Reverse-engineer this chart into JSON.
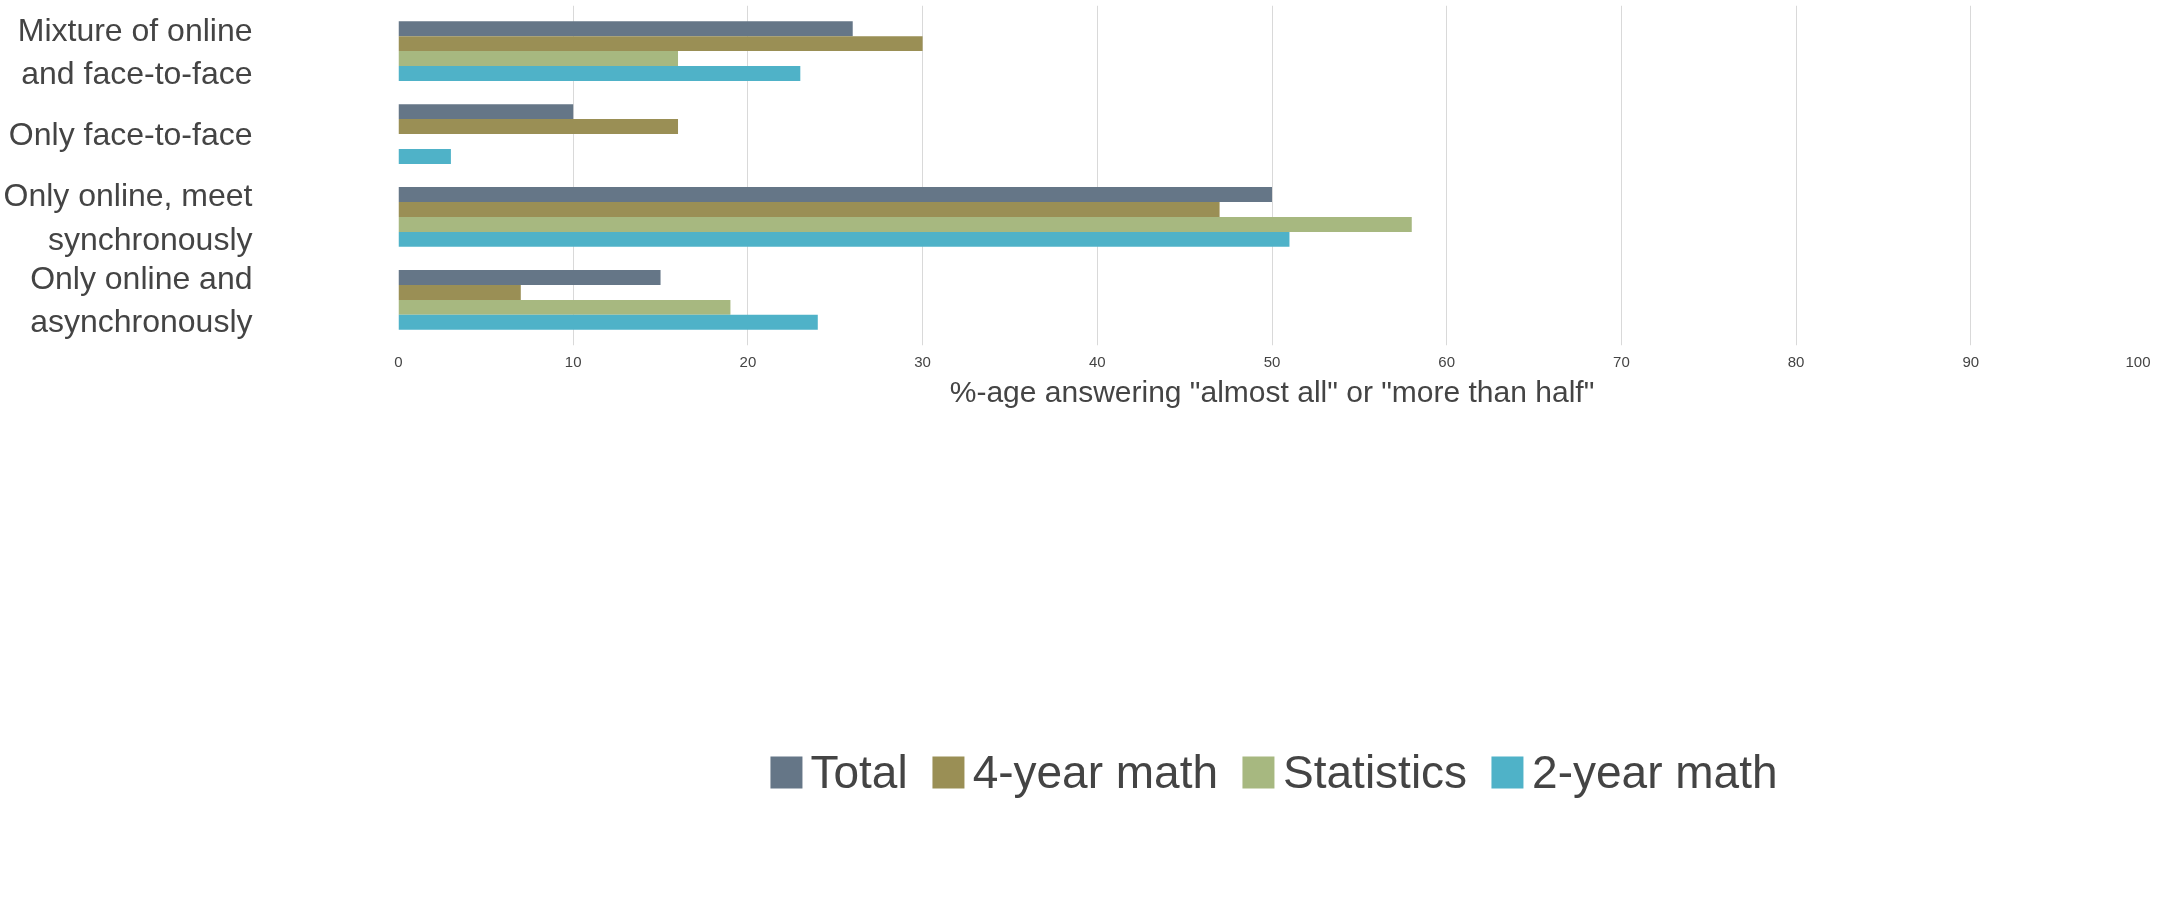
{
  "chart_data": {
    "type": "bar",
    "orientation": "horizontal",
    "xlabel": "%-age answering \"almost all\" or \"more than half\"",
    "categories": [
      "Mixture of online and face-to-face",
      "Only face-to-face",
      "Only online, meet synchronously",
      "Only online and asynchronously"
    ],
    "series": [
      {
        "name": "Total",
        "color": "#657687",
        "values": [
          26,
          10,
          50,
          15
        ]
      },
      {
        "name": "4-year math",
        "color": "#9a8f55",
        "values": [
          30,
          16,
          47,
          7
        ]
      },
      {
        "name": "Statistics",
        "color": "#a7b880",
        "values": [
          16,
          0,
          58,
          19
        ]
      },
      {
        "name": "2-year math",
        "color": "#4fb2c8",
        "values": [
          23,
          3,
          51,
          24
        ]
      }
    ],
    "xlim": [
      0,
      100
    ],
    "xticks": [
      0,
      10,
      20,
      30,
      40,
      50,
      60,
      70,
      80,
      90,
      100
    ],
    "grid": "x",
    "legend": "bottom"
  }
}
